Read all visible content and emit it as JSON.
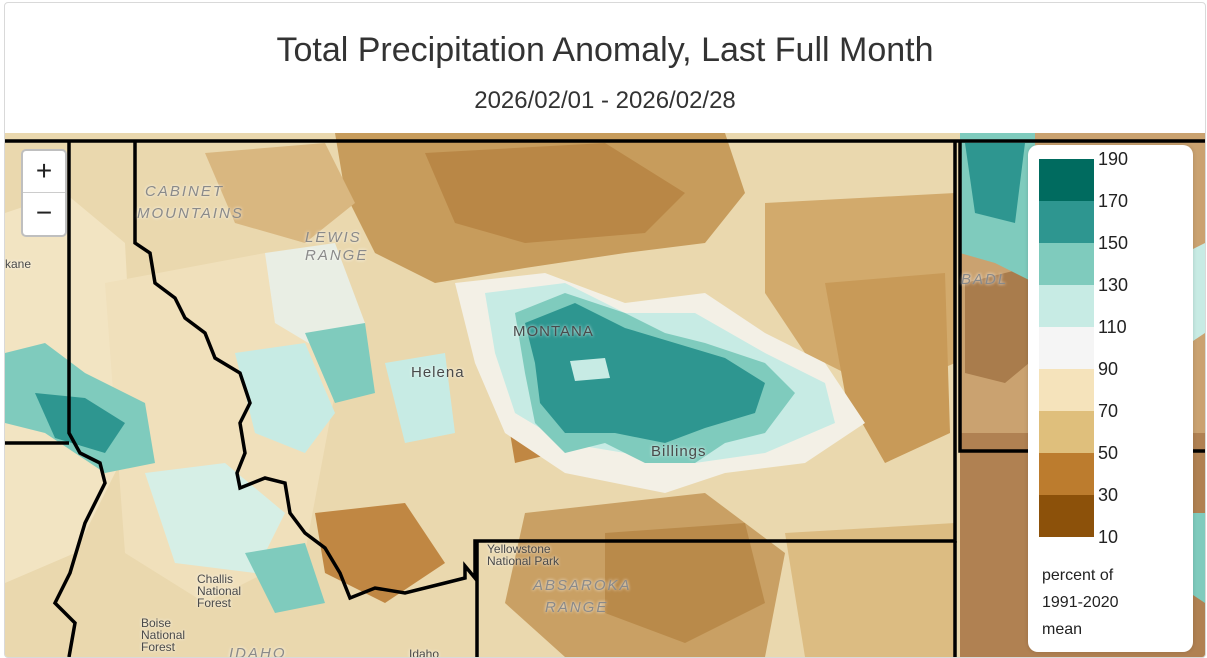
{
  "title": "Total Precipitation Anomaly, Last Full Month",
  "date_range": "2026/02/01 - 2026/02/28",
  "zoom": {
    "in_label": "+",
    "out_label": "−"
  },
  "legend": {
    "ticks": [
      "190",
      "170",
      "150",
      "130",
      "110",
      "90",
      "70",
      "50",
      "30",
      "10"
    ],
    "bins": [
      {
        "range": "170-190",
        "color": "#006b5f"
      },
      {
        "range": "150-170",
        "color": "#2e9690"
      },
      {
        "range": "130-150",
        "color": "#7fcbbd"
      },
      {
        "range": "110-130",
        "color": "#c7ebe4"
      },
      {
        "range": "90-110",
        "color": "#f5f5f5"
      },
      {
        "range": "70-90",
        "color": "#f5e3bb"
      },
      {
        "range": "50-70",
        "color": "#dfbf7c"
      },
      {
        "range": "30-50",
        "color": "#bc7c2e"
      },
      {
        "range": "10-30",
        "color": "#8c510a"
      }
    ],
    "unit_line1": "percent of",
    "unit_line2": "1991-2020",
    "unit_line3": "mean"
  },
  "places": {
    "montana": "MONTANA",
    "helena": "Helena",
    "billings": "Billings",
    "spokane": "kane",
    "yellowstone": "Yellowstone National Park",
    "idaho": "Idaho",
    "absaroka": "ABSAROKA",
    "range": "RANGE",
    "cabinet": "CABINET",
    "mountains": "MOUNTAINS",
    "lewis_range": "LEWIS RANGE",
    "boise_forest": "Boise National Forest",
    "challis_forest": "Challis National Forest",
    "idaho_state": "IDAHO",
    "badlands": "BADL"
  }
}
